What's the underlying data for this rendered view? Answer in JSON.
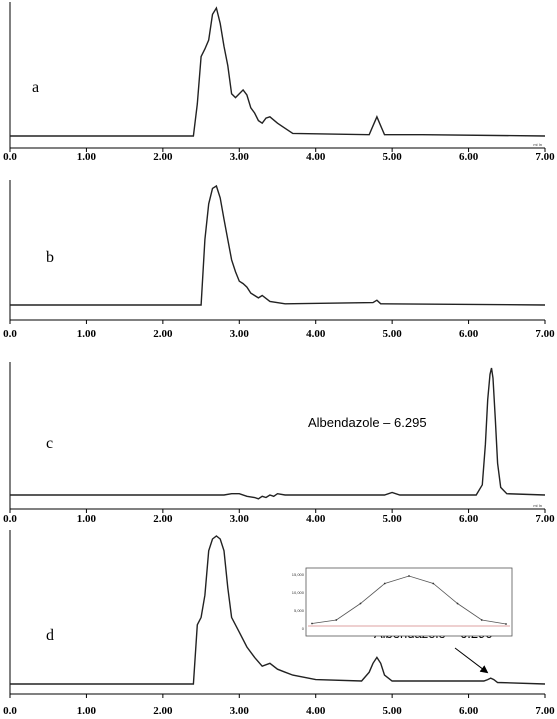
{
  "chart_data": [
    {
      "type": "line",
      "panel": "a",
      "xlim": [
        0,
        7
      ],
      "ticks": [
        "0.0",
        "1.00",
        "2.00",
        "3.00",
        "4.00",
        "5.00",
        "6.00",
        "7.00"
      ],
      "unit_mark": "mi In",
      "annotation": "",
      "series": [
        {
          "x": [
            0,
            2.4,
            2.45,
            2.5,
            2.55,
            2.6,
            2.65,
            2.7,
            2.75,
            2.8,
            2.85,
            2.9,
            2.95,
            3.0,
            3.05,
            3.1,
            3.15,
            3.2,
            3.25,
            3.3,
            3.35,
            3.4,
            3.5,
            3.6,
            3.7,
            4.7,
            4.75,
            4.8,
            4.85,
            4.9,
            5.4,
            7.0
          ],
          "y": [
            0.0,
            0.0,
            0.25,
            0.62,
            0.68,
            0.75,
            0.95,
            1.0,
            0.88,
            0.7,
            0.55,
            0.33,
            0.3,
            0.33,
            0.36,
            0.32,
            0.22,
            0.18,
            0.12,
            0.1,
            0.14,
            0.15,
            0.1,
            0.06,
            0.02,
            0.01,
            0.08,
            0.15,
            0.08,
            0.01,
            0.01,
            0.0
          ]
        }
      ]
    },
    {
      "type": "line",
      "panel": "b",
      "xlim": [
        0,
        7
      ],
      "ticks": [
        "0.0",
        "1.00",
        "2.00",
        "3.00",
        "4.00",
        "5.00",
        "6.00",
        "7.00"
      ],
      "unit_mark": "",
      "annotation": "",
      "series": [
        {
          "x": [
            0,
            2.5,
            2.55,
            2.6,
            2.65,
            2.7,
            2.75,
            2.8,
            2.85,
            2.9,
            2.95,
            3.0,
            3.05,
            3.1,
            3.15,
            3.2,
            3.25,
            3.3,
            3.4,
            3.6,
            4.75,
            4.8,
            4.85,
            7.0
          ],
          "y": [
            0.0,
            0.0,
            0.55,
            0.85,
            0.98,
            1.0,
            0.9,
            0.72,
            0.55,
            0.38,
            0.28,
            0.2,
            0.18,
            0.15,
            0.1,
            0.08,
            0.06,
            0.08,
            0.03,
            0.01,
            0.02,
            0.04,
            0.01,
            0.0
          ]
        }
      ]
    },
    {
      "type": "line",
      "panel": "c",
      "xlim": [
        0,
        7
      ],
      "ticks": [
        "0.0",
        "1.00",
        "2.00",
        "3.00",
        "4.00",
        "5.00",
        "6.00",
        "7.00"
      ],
      "unit_mark": "mi In",
      "annotation": "Albendazole – 6.295",
      "series": [
        {
          "x": [
            0,
            2.8,
            2.9,
            3.0,
            3.1,
            3.2,
            3.25,
            3.3,
            3.35,
            3.4,
            3.45,
            3.5,
            3.6,
            4.9,
            5.0,
            5.1,
            6.1,
            6.18,
            6.22,
            6.25,
            6.28,
            6.3,
            6.32,
            6.35,
            6.38,
            6.42,
            6.5,
            7.0
          ],
          "y": [
            0.0,
            0.0,
            0.01,
            0.01,
            -0.01,
            -0.02,
            -0.03,
            -0.01,
            -0.02,
            0.0,
            -0.01,
            0.01,
            0.0,
            0.0,
            0.02,
            0.0,
            0.0,
            0.08,
            0.4,
            0.75,
            0.95,
            1.0,
            0.92,
            0.6,
            0.25,
            0.06,
            0.01,
            0.0
          ]
        }
      ]
    },
    {
      "type": "line",
      "panel": "d",
      "xlim": [
        0,
        7
      ],
      "ticks": [
        "0.0",
        "1.00",
        "2.00",
        "3.00",
        "4.00",
        "5.00",
        "6.00",
        "7.00"
      ],
      "unit_mark": "",
      "annotation": "Albendazole – 6.290",
      "series": [
        {
          "x": [
            0,
            2.4,
            2.45,
            2.5,
            2.55,
            2.6,
            2.65,
            2.7,
            2.75,
            2.8,
            2.85,
            2.9,
            3.0,
            3.1,
            3.2,
            3.3,
            3.4,
            3.5,
            3.6,
            3.7,
            3.8,
            4.0,
            4.6,
            4.7,
            4.75,
            4.8,
            4.85,
            4.9,
            5.0,
            6.2,
            6.25,
            6.29,
            6.33,
            6.38,
            7.0
          ],
          "y": [
            0.0,
            0.0,
            0.4,
            0.45,
            0.6,
            0.9,
            0.98,
            1.0,
            0.98,
            0.9,
            0.65,
            0.45,
            0.35,
            0.25,
            0.18,
            0.12,
            0.14,
            0.1,
            0.08,
            0.06,
            0.05,
            0.03,
            0.02,
            0.08,
            0.14,
            0.18,
            0.14,
            0.06,
            0.02,
            0.02,
            0.03,
            0.04,
            0.03,
            0.01,
            0.0
          ]
        }
      ],
      "inset": {
        "series": [
          {
            "x": [
              -1.0,
              -0.75,
              -0.5,
              -0.25,
              0.0,
              0.25,
              0.5,
              0.75,
              1.0
            ],
            "y": [
              0.05,
              0.12,
              0.45,
              0.85,
              1.0,
              0.85,
              0.45,
              0.12,
              0.04
            ]
          }
        ],
        "baseline_color": "#d08080",
        "yticks": [
          "15,000",
          "10,000",
          "5,000",
          "0"
        ]
      }
    }
  ]
}
